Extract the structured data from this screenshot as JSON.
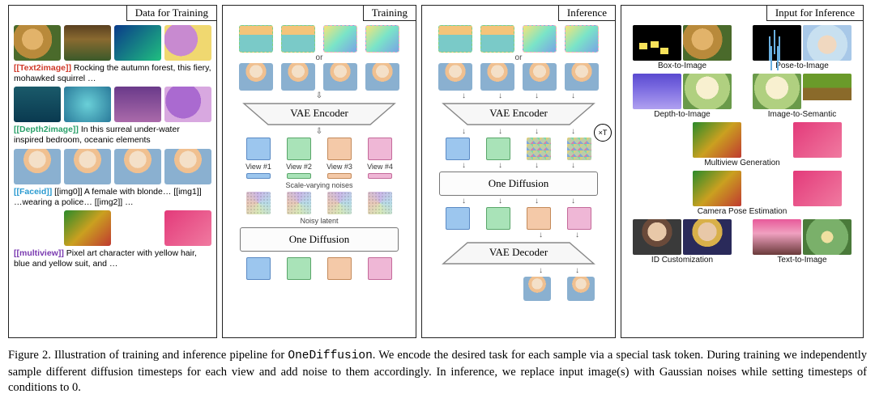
{
  "figure": {
    "number": 2,
    "caption": "Illustration of training and inference pipeline for OneDiffusion. We encode the desired task for each sample via a special task token. During training we independently sample different diffusion timesteps for each view and add noise to them accordingly. In inference, we replace input image(s) with Gaussian noises while setting timesteps of conditions to 0.",
    "code_word": "OneDiffusion"
  },
  "panels": {
    "data_training": {
      "title": "Data for Training"
    },
    "training": {
      "title": "Training"
    },
    "inference": {
      "title": "Inference"
    },
    "input_inf": {
      "title": "Input for Inference"
    }
  },
  "p1": {
    "rows": [
      {
        "token": "[[Text2image]]",
        "token_color": "#d03a2a",
        "text": "Rocking the autumn forest, this fiery, mohawked squirrel …",
        "thumbs": [
          "bg-squirrel",
          "bg-forest",
          "bg-grad1",
          "bg-grad2"
        ]
      },
      {
        "token": "[[Depth2image]]",
        "token_color": "#2aa06a",
        "text": "In this surreal under-water inspired bedroom, oceanic elements",
        "thumbs": [
          "bg-bed1",
          "bg-bed2",
          "bg-bed3",
          "bg-bed4"
        ]
      },
      {
        "token": "[[Faceid]]",
        "token_color": "#2a9ad0",
        "text": "[[img0]] A female with blonde… [[img1]] …wearing a police…  [[img2]] …",
        "thumbs": [
          "bg-face",
          "bg-face",
          "bg-face",
          "bg-face"
        ]
      },
      {
        "token": "[[multiview]]",
        "token_color": "#7a3ab0",
        "text": "Pixel art character with yellow hair, blue and yellow suit, and …",
        "thumbs": [
          "bg-pixboy",
          "bg-rainbow",
          "bg-pixboy",
          "bg-pink"
        ]
      }
    ]
  },
  "pipe": {
    "vae_encoder": "VAE Encoder",
    "vae_decoder": "VAE Decoder",
    "one_diffusion": "One Diffusion",
    "or": "or",
    "views": [
      "View #1",
      "View #2",
      "View #3",
      "View #4"
    ],
    "scale_noises": "Scale-varying noises",
    "noisy_latent": "Noisy latent",
    "loop": "×T",
    "colors": {
      "box_blue": "#9cc6ee",
      "box_green": "#a9e3b8",
      "box_peach": "#f4c9a8",
      "box_pink": "#efb7d6",
      "border_blue": "#5a8ac4",
      "border_green": "#5aa66a",
      "border_peach": "#c48a5a",
      "border_pink": "#c46a9a"
    },
    "top_tiles_row1": [
      "bg-sky",
      "bg-sky",
      "bg-skygrad",
      "bg-skygrad"
    ],
    "top_tiles_row2": [
      "bg-face",
      "bg-face",
      "bg-face",
      "bg-face"
    ]
  },
  "p3": {
    "top_tiles_row1": [
      "bg-sky",
      "bg-sky",
      "bg-skygrad",
      "bg-skygrad"
    ],
    "top_tiles_row2": [
      "bg-face",
      "bg-face",
      "bg-face",
      "bg-face"
    ],
    "latent_row": [
      "blue",
      "green",
      "mosaic",
      "mosaic"
    ],
    "mid_row": [
      "blue",
      "green",
      "noisy",
      "noisy"
    ],
    "post_od": [
      "blue",
      "green",
      "peach",
      "pink"
    ],
    "out_thumbs": [
      "bg-face",
      "bg-face"
    ]
  },
  "p4": {
    "tasks": [
      {
        "label": "Box-to-Image",
        "thumbs": [
          "bg-black-yellow",
          "bg-squirrel"
        ]
      },
      {
        "label": "Pose-to-Image",
        "thumbs": [
          "bg-black-stick",
          "bg-toy"
        ]
      },
      {
        "label": "Depth-to-Image",
        "thumbs": [
          "bg-depth",
          "bg-dragon"
        ]
      },
      {
        "label": "Image-to-Semantic",
        "thumbs": [
          "bg-dragon",
          "bg-seg"
        ]
      },
      {
        "label": "Multiview Generation",
        "thumbs": [
          "bg-pixboy",
          "bg-rainbow",
          "bg-pixboy",
          "bg-pink"
        ],
        "wide": true
      },
      {
        "label": "Camera Pose Estimation",
        "thumbs": [
          "bg-pixboy",
          "bg-rainbow",
          "bg-pixboy",
          "bg-pink"
        ],
        "wide": true
      },
      {
        "label": "ID Customization",
        "thumbs": [
          "bg-portrait1",
          "bg-portrait2"
        ]
      },
      {
        "label": "Text-to-Image",
        "thumbs": [
          "bg-t2i1",
          "bg-t2i2"
        ]
      }
    ]
  }
}
